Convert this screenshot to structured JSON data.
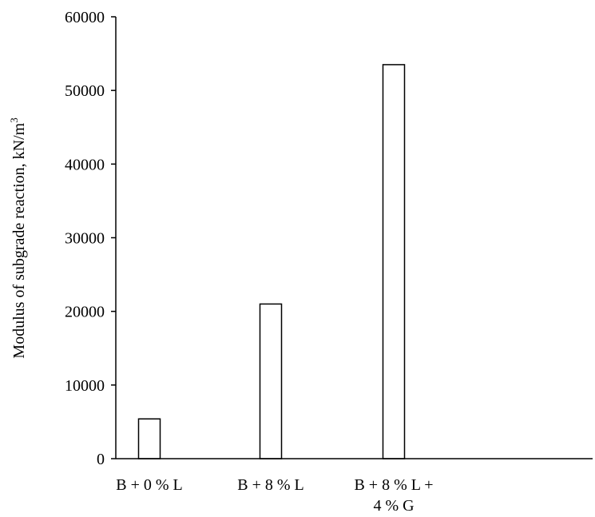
{
  "chart_data": {
    "type": "bar",
    "categories": [
      [
        "B + 0 % L"
      ],
      [
        "B + 8 % L"
      ],
      [
        "B + 8 % L +",
        "4 % G"
      ]
    ],
    "values": [
      5400,
      21000,
      53500
    ],
    "title": "",
    "xlabel": "",
    "ylabel": "Modulus of subgrade reaction, kN/m",
    "ylabel_superscript": "3",
    "ylim": [
      0,
      60000
    ],
    "yticks": [
      0,
      10000,
      20000,
      30000,
      40000,
      50000,
      60000
    ],
    "ytick_labels": [
      "0",
      "10000",
      "20000",
      "30000",
      "40000",
      "50000",
      "60000"
    ],
    "grid": false,
    "legend": "none",
    "colors": {
      "bar_fill": "#ffffff",
      "bar_stroke": "#000000",
      "axis": "#000000"
    }
  }
}
